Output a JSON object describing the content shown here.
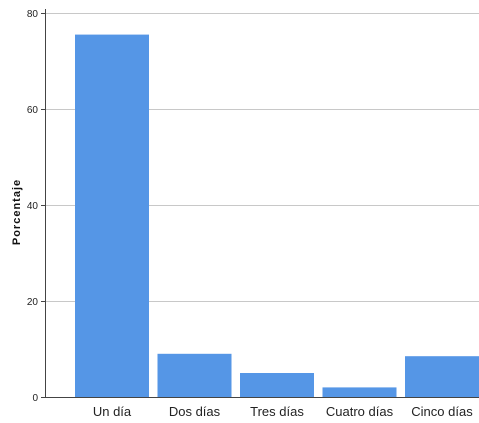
{
  "chart_data": {
    "type": "bar",
    "title": "",
    "xlabel": "",
    "ylabel": "Porcentaje",
    "categories": [
      "Un día",
      "Dos días",
      "Tres días",
      "Cuatro días",
      "Cinco días"
    ],
    "values": [
      75.5,
      9.0,
      5.0,
      2.0,
      8.5
    ],
    "ylim": [
      0,
      80
    ],
    "yticks": [
      0,
      20,
      40,
      60,
      80
    ],
    "grid": true,
    "legend": "none",
    "bar_color": "#5596e6",
    "grid_color": "#c8c8c8"
  }
}
